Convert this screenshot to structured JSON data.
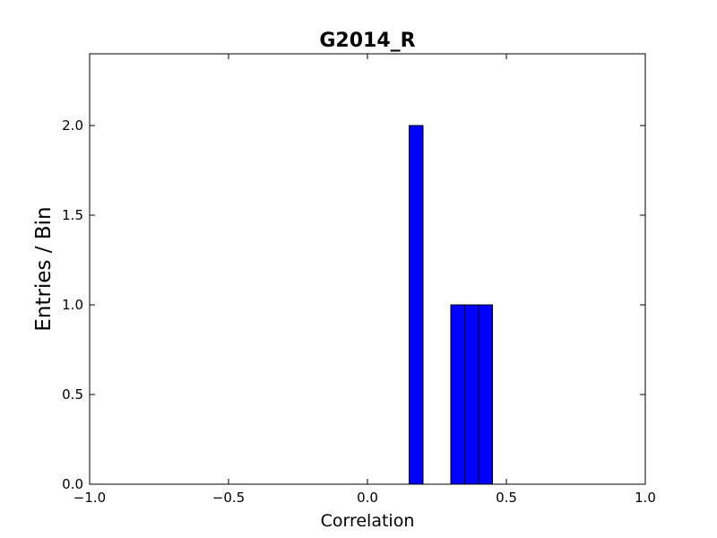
{
  "chart_data": {
    "type": "bar",
    "title": "G2014_R",
    "xlabel": "Correlation",
    "ylabel": "Entries / Bin",
    "xlim": [
      -1.0,
      1.0
    ],
    "ylim": [
      0.0,
      2.4
    ],
    "xticks": [
      -1.0,
      -0.5,
      0.0,
      0.5,
      1.0
    ],
    "xtick_labels": [
      "−1.0",
      "−0.5",
      "0.0",
      "0.5",
      "1.0"
    ],
    "yticks": [
      0.0,
      0.5,
      1.0,
      1.5,
      2.0
    ],
    "ytick_labels": [
      "0.0",
      "0.5",
      "1.0",
      "1.5",
      "2.0"
    ],
    "bar_color": "#0000ff",
    "bins": [
      {
        "x0": 0.15,
        "x1": 0.2,
        "value": 2
      },
      {
        "x0": 0.3,
        "x1": 0.35,
        "value": 1
      },
      {
        "x0": 0.35,
        "x1": 0.4,
        "value": 1
      },
      {
        "x0": 0.4,
        "x1": 0.45,
        "value": 1
      }
    ],
    "grid": false,
    "legend": "none"
  }
}
